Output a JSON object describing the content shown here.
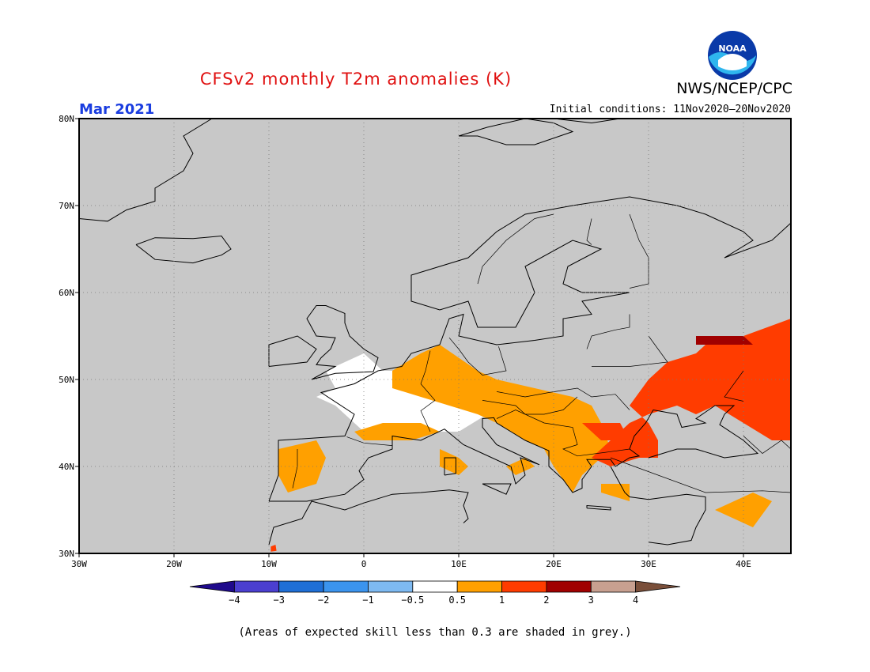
{
  "title": "CFSv2 monthly T2m anomalies (K)",
  "organization": "NWS/NCEP/CPC",
  "logo_text": "NOAA",
  "valid_month": "Mar 2021",
  "initial_conditions": "Initial conditions: 11Nov2020–20Nov2020",
  "note": "(Areas of expected skill less than 0.3 are shaded in grey.)",
  "map": {
    "lon_range": [
      -30,
      45
    ],
    "lat_range": [
      30,
      80
    ],
    "lat_ticks": [
      "30N",
      "40N",
      "50N",
      "60N",
      "70N",
      "80N"
    ],
    "lon_ticks": [
      "30W",
      "20W",
      "10W",
      "0",
      "10E",
      "20E",
      "30E",
      "40E"
    ],
    "grid_lines": true,
    "background_color": "#c8c8c8"
  },
  "legend": {
    "colors": [
      "#1f0a8c",
      "#4b3fd0",
      "#1f6fd6",
      "#3b94ee",
      "#7ebaf2",
      "#ffffff",
      "#ffa000",
      "#ff3c00",
      "#a00000",
      "#c8a090",
      "#7a4f3a"
    ],
    "labels": [
      "−4",
      "−3",
      "−2",
      "−1",
      "−0.5",
      "0.5",
      "1",
      "2",
      "3",
      "4"
    ]
  }
}
